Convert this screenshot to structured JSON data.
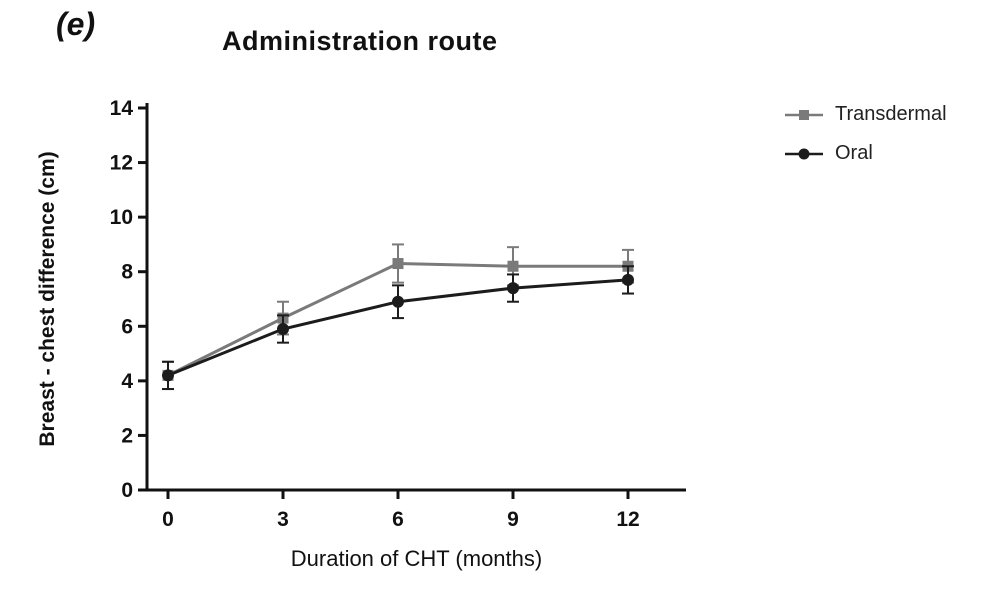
{
  "panel_label": "(e)",
  "chart_data": {
    "type": "line",
    "title": "Administration route",
    "xlabel": "Duration of CHT (months)",
    "ylabel": "Breast - chest difference (cm)",
    "x": [
      0,
      3,
      6,
      9,
      12
    ],
    "xticks": [
      0,
      3,
      6,
      9,
      12
    ],
    "yticks": [
      0,
      2,
      4,
      6,
      8,
      10,
      12,
      14
    ],
    "xlim": [
      0,
      12
    ],
    "ylim": [
      0,
      14
    ],
    "grid": false,
    "legend_position": "right",
    "series": [
      {
        "name": "Transdermal",
        "marker": "square",
        "color": "#7a7a7a",
        "values": [
          4.2,
          6.3,
          8.3,
          8.2,
          8.2
        ],
        "errors": [
          0.5,
          0.6,
          0.7,
          0.7,
          0.6
        ]
      },
      {
        "name": "Oral",
        "marker": "circle",
        "color": "#1c1c1c",
        "values": [
          4.2,
          5.9,
          6.9,
          7.4,
          7.7
        ],
        "errors": [
          0.5,
          0.5,
          0.6,
          0.5,
          0.5
        ]
      }
    ]
  }
}
